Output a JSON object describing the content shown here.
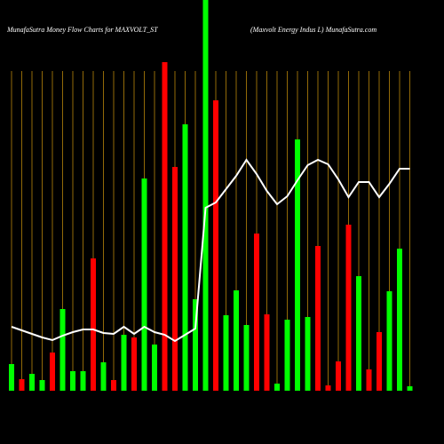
{
  "chart_data": {
    "type": "bar",
    "title": "MunafaSutra  Money Flow  Charts for MAXVOLT_ST",
    "subtitle": "(Maxvolt Energy Indus L) MunafaSutra.com",
    "values": [
      30,
      13,
      19,
      12,
      43,
      92,
      22,
      22,
      149,
      32,
      12,
      63,
      60,
      239,
      52,
      370,
      252,
      300,
      103,
      440,
      327,
      85,
      113,
      74,
      177,
      86,
      8,
      80,
      283,
      83,
      163,
      6,
      33,
      187,
      129,
      24,
      66,
      112,
      160,
      5
    ],
    "colors": [
      "#00ff00",
      "#ff0000",
      "#00ff00",
      "#00ff00",
      "#ff0000",
      "#00ff00",
      "#00ff00",
      "#00ff00",
      "#ff0000",
      "#00ff00",
      "#ff0000",
      "#00ff00",
      "#ff0000",
      "#00ff00",
      "#00ff00",
      "#ff0000",
      "#ff0000",
      "#00ff00",
      "#00ff00",
      "#00ff00",
      "#ff0000",
      "#00ff00",
      "#00ff00",
      "#00ff00",
      "#ff0000",
      "#ff0000",
      "#00ff00",
      "#00ff00",
      "#00ff00",
      "#00ff00",
      "#ff0000",
      "#ff0000",
      "#ff0000",
      "#ff0000",
      "#00ff00",
      "#ff0000",
      "#ff0000",
      "#00ff00",
      "#00ff00",
      "#00ff00"
    ],
    "line": [
      72,
      68,
      64,
      60,
      57,
      62,
      66,
      69,
      69,
      65,
      64,
      72,
      64,
      72,
      66,
      63,
      56,
      63,
      70,
      206,
      212,
      227,
      242,
      260,
      244,
      225,
      210,
      219,
      237,
      254,
      260,
      255,
      238,
      218,
      235,
      235,
      218,
      233,
      250,
      250
    ],
    "line_color": "#ffffff",
    "ylim": [
      0,
      440
    ]
  }
}
